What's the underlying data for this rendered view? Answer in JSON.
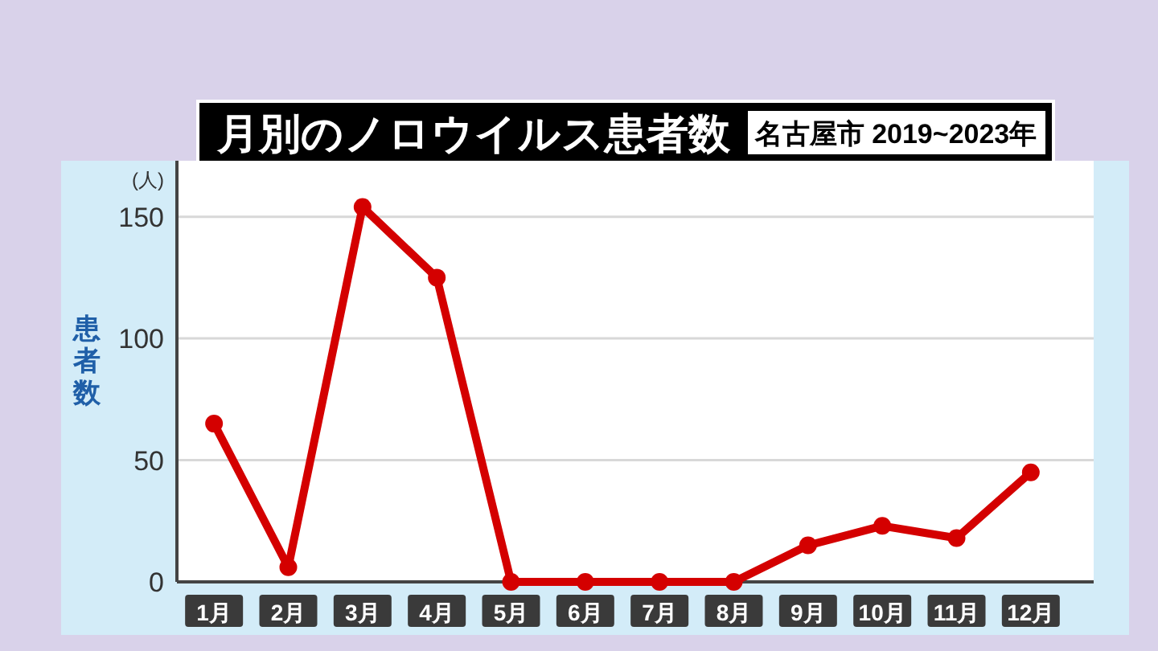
{
  "chart_data": {
    "type": "line",
    "title": "月別のノロウイルス患者数",
    "subtitle": "名古屋市 2019~2023年",
    "ylabel": "患者数",
    "annotations": [
      "(人)"
    ],
    "categories": [
      "1月",
      "2月",
      "3月",
      "4月",
      "5月",
      "6月",
      "7月",
      "8月",
      "9月",
      "10月",
      "11月",
      "12月"
    ],
    "series": [
      {
        "color": "#d40000",
        "values": [
          65,
          6,
          154,
          125,
          0,
          0,
          0,
          0,
          15,
          23,
          18,
          45
        ]
      }
    ],
    "ylim": [
      0,
      173
    ],
    "yticks": [
      0,
      50,
      100,
      150
    ],
    "grid": "y",
    "marker": "circle"
  }
}
